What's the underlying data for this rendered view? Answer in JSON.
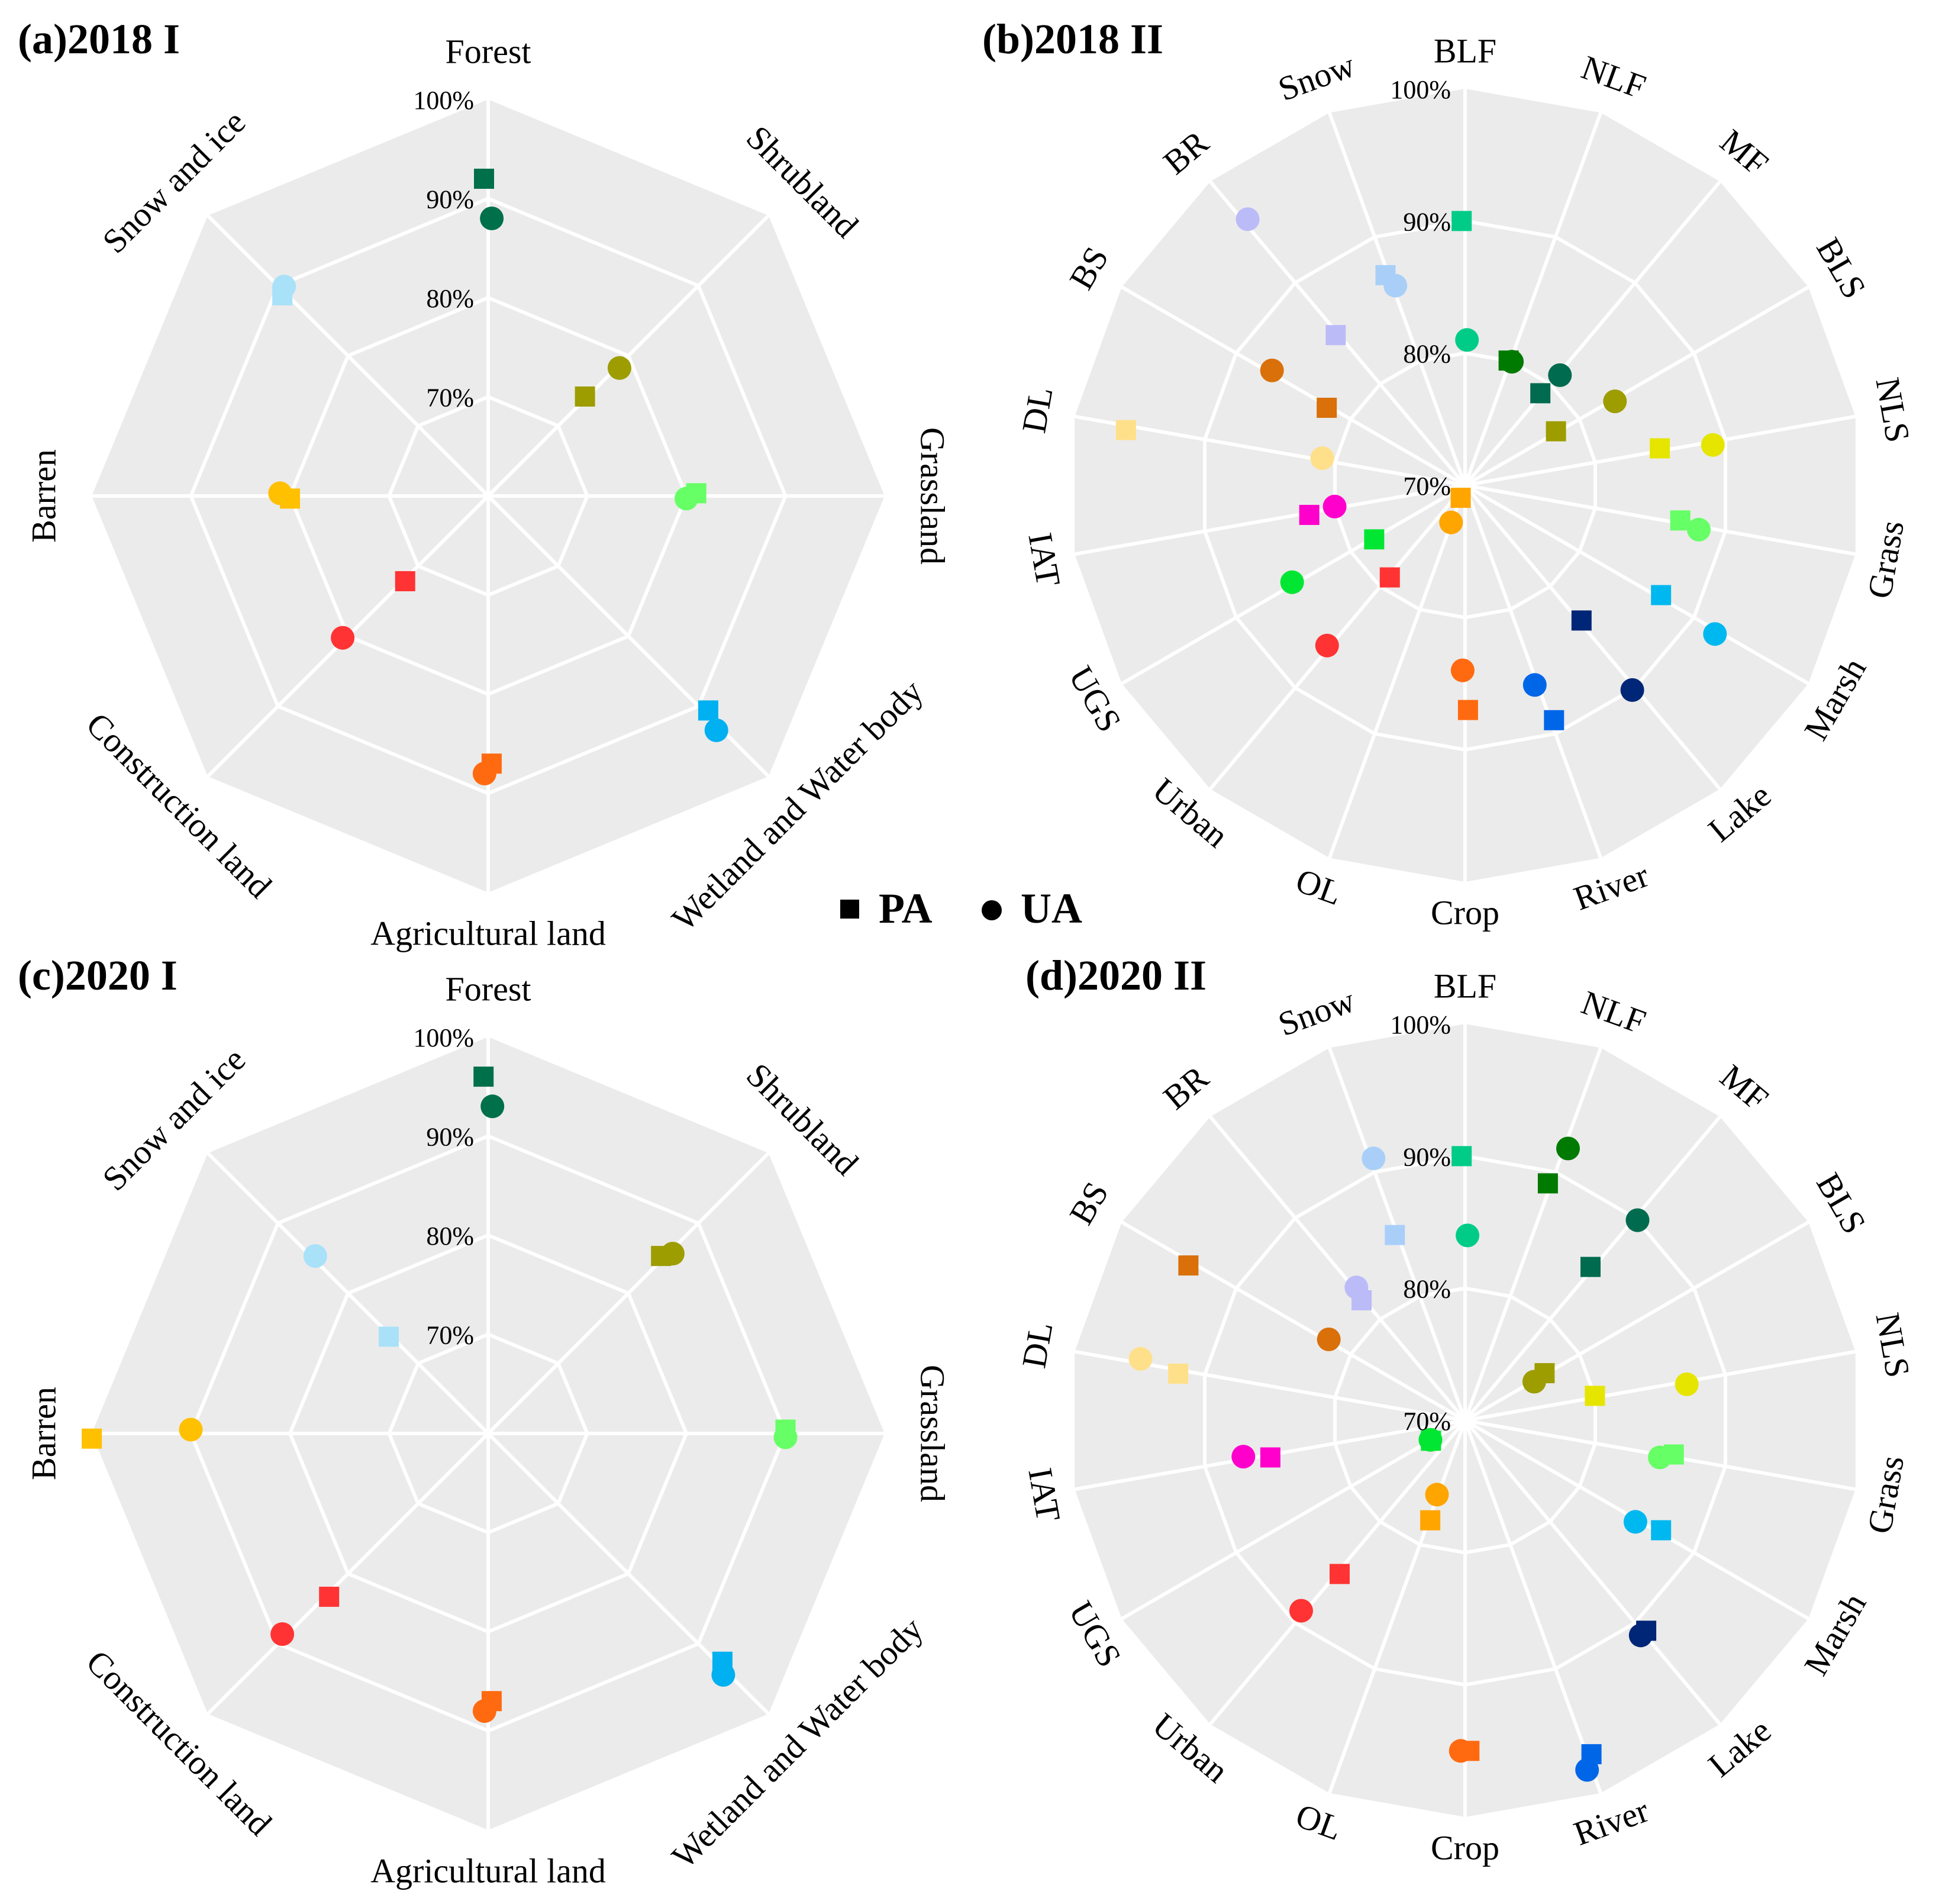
{
  "legend": {
    "pa_label": "PA",
    "ua_label": "UA",
    "pa_shape": "square",
    "ua_shape": "circle"
  },
  "chart_data": [
    {
      "type": "radar",
      "title": "(a)2018 I",
      "range": [
        60,
        100
      ],
      "ticks": [
        100,
        90,
        80,
        70
      ],
      "tick_labels": [
        "100%",
        "90%",
        "80%",
        "70%"
      ],
      "categories": [
        "Forest",
        "Shrubland",
        "Grassland",
        "Wetland and Water body",
        "Agricultural land",
        "Construction land",
        "Barren",
        "Snow and ice"
      ],
      "colors": [
        "#00704A",
        "#9D9D00",
        "#66FF66",
        "#00B0F0",
        "#FF6A10",
        "#FF3333",
        "#FFC000",
        "#A9E1F9"
      ],
      "series": [
        {
          "name": "PA",
          "values": [
            92,
            74,
            81,
            91,
            87,
            72,
            80,
            89
          ]
        },
        {
          "name": "UA",
          "values": [
            88,
            78.5,
            80,
            93,
            88,
            80.5,
            81,
            89.5
          ]
        }
      ]
    },
    {
      "type": "radar",
      "title": "(b)2018 II",
      "range": [
        70,
        100
      ],
      "ticks": [
        100,
        90,
        80,
        70
      ],
      "tick_labels": [
        "100%",
        "90%",
        "80%",
        "70%"
      ],
      "categories": [
        "BLF",
        "NLF",
        "MF",
        "BLS",
        "NLS",
        "Grass",
        "Marsh",
        "Lake",
        "River",
        "Crop",
        "OL",
        "Urban",
        "UGS",
        "IAT",
        "DL",
        "BS",
        "BR",
        "Snow"
      ],
      "colors": [
        "#00CC88",
        "#007A00",
        "#006B4F",
        "#9D9D00",
        "#E5E500",
        "#66FF66",
        "#00B8F0",
        "#002677",
        "#0066E8",
        "#FF6A10",
        "#FFA500",
        "#FF3333",
        "#00E633",
        "#FF00CC",
        "#FFE08A",
        "#D9700A",
        "#BBBBF8",
        "#A9CFF9"
      ],
      "series": [
        {
          "name": "PA",
          "values": [
            90,
            80,
            79,
            78,
            85,
            86.5,
            87,
            83.5,
            89,
            87,
            71,
            79,
            78,
            82,
            96,
            82,
            85,
            87
          ]
        },
        {
          "name": "UA",
          "values": [
            81,
            80,
            81,
            83,
            89,
            88,
            92,
            90,
            86,
            84,
            73,
            86,
            85,
            80,
            81,
            87,
            96,
            86
          ]
        }
      ]
    },
    {
      "type": "radar",
      "title": "(c)2020 I",
      "range": [
        60,
        100
      ],
      "ticks": [
        100,
        90,
        80,
        70
      ],
      "tick_labels": [
        "100%",
        "90%",
        "80%",
        "70%"
      ],
      "categories": [
        "Forest",
        "Shrubland",
        "Grassland",
        "Wetland and Water body",
        "Agricultural land",
        "Construction land",
        "Barren",
        "Snow and ice"
      ],
      "colors": [
        "#00704A",
        "#9D9D00",
        "#66FF66",
        "#00B0F0",
        "#FF6A10",
        "#FF3333",
        "#FFC000",
        "#A9E1F9"
      ],
      "series": [
        {
          "name": "PA",
          "values": [
            96,
            85,
            90,
            93,
            87,
            83,
            100,
            74
          ]
        },
        {
          "name": "UA",
          "values": [
            93,
            86,
            90,
            94,
            88,
            89,
            90,
            85
          ]
        }
      ]
    },
    {
      "type": "radar",
      "title": "(d)2020 II",
      "range": [
        70,
        100
      ],
      "ticks": [
        100,
        90,
        80,
        70
      ],
      "tick_labels": [
        "100%",
        "90%",
        "80%",
        "70%"
      ],
      "categories": [
        "BLF",
        "NLF",
        "MF",
        "BLS",
        "NLS",
        "Grass",
        "Marsh",
        "Lake",
        "River",
        "Crop",
        "OL",
        "Urban",
        "UGS",
        "IAT",
        "DL",
        "BS",
        "BR",
        "Snow"
      ],
      "colors": [
        "#00CC88",
        "#007A00",
        "#006B4F",
        "#9D9D00",
        "#E5E500",
        "#66FF66",
        "#00B8F0",
        "#002677",
        "#0066E8",
        "#FF6A10",
        "#FFA500",
        "#FF3333",
        "#00E633",
        "#FF00CC",
        "#FFE08A",
        "#D9700A",
        "#BBBBF8",
        "#A9CFF9"
      ],
      "series": [
        {
          "name": "PA",
          "values": [
            90,
            89,
            85,
            77,
            80,
            86,
            87,
            91,
            97,
            95,
            78,
            85,
            73,
            85,
            92,
            94,
            82,
            85
          ]
        },
        {
          "name": "UA",
          "values": [
            84,
            92,
            90,
            76,
            87,
            85,
            85,
            91,
            98,
            95,
            76,
            89,
            73,
            87,
            95,
            82,
            83,
            91
          ]
        }
      ]
    }
  ]
}
